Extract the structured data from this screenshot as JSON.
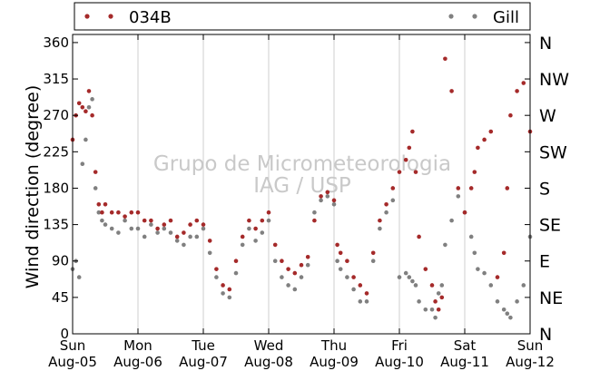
{
  "chart_data": {
    "type": "scatter",
    "title": "",
    "ylabel": "Wind direction (degree)",
    "xlabel": "",
    "ylim": [
      0,
      370
    ],
    "xlim": [
      0,
      7
    ],
    "grid": "vertical-only",
    "legend_placement": "top",
    "watermark": [
      "Grupo de Micrometeorologia",
      "IAG / USP"
    ],
    "x_ticks": [
      {
        "x": 0,
        "day": "Sun",
        "date": "Aug-05"
      },
      {
        "x": 1,
        "day": "Mon",
        "date": "Aug-06"
      },
      {
        "x": 2,
        "day": "Tue",
        "date": "Aug-07"
      },
      {
        "x": 3,
        "day": "Wed",
        "date": "Aug-08"
      },
      {
        "x": 4,
        "day": "Thu",
        "date": "Aug-09"
      },
      {
        "x": 5,
        "day": "Fri",
        "date": "Aug-10"
      },
      {
        "x": 6,
        "day": "Sat",
        "date": "Aug-11"
      },
      {
        "x": 7,
        "day": "Sun",
        "date": "Aug-12"
      }
    ],
    "y_ticks": [
      0,
      45,
      90,
      135,
      180,
      225,
      270,
      315,
      360
    ],
    "y2_ticks": [
      {
        "v": 0,
        "label": "N"
      },
      {
        "v": 45,
        "label": "NE"
      },
      {
        "v": 90,
        "label": "E"
      },
      {
        "v": 135,
        "label": "SE"
      },
      {
        "v": 180,
        "label": "S"
      },
      {
        "v": 225,
        "label": "SW"
      },
      {
        "v": 270,
        "label": "W"
      },
      {
        "v": 315,
        "label": "NW"
      },
      {
        "v": 360,
        "label": "N"
      }
    ],
    "series": [
      {
        "name": "034B",
        "color": "#a52a2a",
        "x": [
          0.0,
          0.05,
          0.1,
          0.15,
          0.2,
          0.25,
          0.3,
          0.35,
          0.4,
          0.45,
          0.5,
          0.6,
          0.7,
          0.8,
          0.9,
          1.0,
          1.1,
          1.2,
          1.3,
          1.4,
          1.5,
          1.6,
          1.7,
          1.8,
          1.9,
          2.0,
          2.1,
          2.2,
          2.3,
          2.4,
          2.5,
          2.6,
          2.7,
          2.8,
          2.9,
          3.0,
          3.1,
          3.2,
          3.3,
          3.4,
          3.5,
          3.6,
          3.7,
          3.8,
          3.9,
          4.0,
          4.05,
          4.1,
          4.2,
          4.3,
          4.4,
          4.5,
          4.6,
          4.7,
          4.8,
          4.9,
          5.0,
          5.1,
          5.15,
          5.2,
          5.25,
          5.3,
          5.4,
          5.5,
          5.55,
          5.6,
          5.65,
          5.7,
          5.8,
          5.9,
          6.0,
          6.1,
          6.15,
          6.2,
          6.3,
          6.4,
          6.5,
          6.6,
          6.65,
          6.7,
          6.8,
          6.9,
          7.0
        ],
        "y": [
          240,
          270,
          285,
          280,
          275,
          300,
          270,
          200,
          160,
          150,
          160,
          150,
          150,
          145,
          150,
          150,
          140,
          140,
          130,
          135,
          140,
          120,
          125,
          135,
          140,
          135,
          115,
          80,
          60,
          55,
          90,
          120,
          140,
          130,
          140,
          150,
          110,
          90,
          80,
          75,
          85,
          95,
          140,
          170,
          175,
          165,
          110,
          100,
          90,
          70,
          60,
          50,
          100,
          140,
          160,
          180,
          200,
          215,
          230,
          250,
          200,
          120,
          80,
          60,
          40,
          30,
          45,
          340,
          300,
          180,
          150,
          180,
          200,
          230,
          240,
          250,
          70,
          100,
          180,
          270,
          300,
          310,
          250
        ]
      },
      {
        "name": "Gill",
        "color": "#808080",
        "x": [
          0.0,
          0.05,
          0.1,
          0.15,
          0.2,
          0.25,
          0.3,
          0.35,
          0.4,
          0.45,
          0.5,
          0.6,
          0.7,
          0.8,
          0.9,
          1.0,
          1.1,
          1.2,
          1.3,
          1.4,
          1.5,
          1.6,
          1.7,
          1.8,
          1.9,
          2.0,
          2.1,
          2.2,
          2.3,
          2.4,
          2.5,
          2.6,
          2.7,
          2.8,
          2.9,
          3.0,
          3.1,
          3.2,
          3.3,
          3.4,
          3.5,
          3.6,
          3.7,
          3.8,
          3.9,
          4.0,
          4.05,
          4.1,
          4.2,
          4.3,
          4.4,
          4.5,
          4.6,
          4.7,
          4.8,
          4.9,
          5.0,
          5.1,
          5.15,
          5.2,
          5.25,
          5.3,
          5.4,
          5.5,
          5.55,
          5.6,
          5.65,
          5.7,
          5.8,
          5.9,
          6.0,
          6.1,
          6.15,
          6.2,
          6.3,
          6.4,
          6.5,
          6.6,
          6.65,
          6.7,
          6.8,
          6.9,
          7.0
        ],
        "y": [
          80,
          90,
          70,
          210,
          240,
          280,
          290,
          180,
          150,
          140,
          135,
          130,
          125,
          140,
          130,
          130,
          120,
          135,
          125,
          130,
          125,
          115,
          110,
          120,
          120,
          130,
          100,
          70,
          50,
          45,
          75,
          110,
          130,
          115,
          125,
          140,
          90,
          70,
          60,
          55,
          70,
          85,
          150,
          165,
          170,
          160,
          90,
          80,
          70,
          55,
          40,
          40,
          90,
          130,
          150,
          165,
          70,
          75,
          70,
          65,
          60,
          40,
          30,
          30,
          20,
          50,
          60,
          110,
          140,
          170,
          150,
          120,
          100,
          80,
          75,
          60,
          40,
          30,
          25,
          20,
          40,
          60,
          120
        ]
      }
    ]
  }
}
